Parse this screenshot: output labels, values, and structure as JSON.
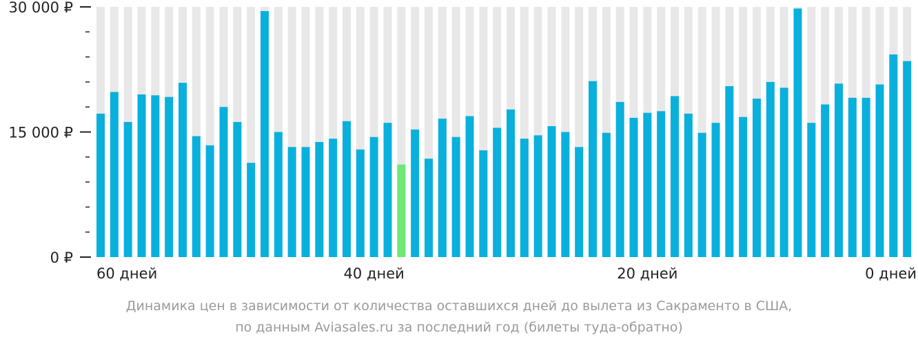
{
  "chart_data": {
    "type": "bar",
    "ylim": [
      0,
      30000
    ],
    "y_ticks": [
      {
        "value": 0,
        "label": "0 ₽"
      },
      {
        "value": 15000,
        "label": "15 000 ₽"
      },
      {
        "value": 30000,
        "label": "30 000 ₽"
      }
    ],
    "y_minor_step": 3000,
    "x_labels": [
      {
        "index": 0,
        "label": "60 дней"
      },
      {
        "index": 20,
        "label": "40 дней"
      },
      {
        "index": 40,
        "label": "20 дней"
      },
      {
        "index": 59,
        "label": "0 дней"
      }
    ],
    "values": [
      17200,
      19800,
      16200,
      19500,
      19400,
      19200,
      20900,
      14500,
      13400,
      18000,
      16200,
      11300,
      29500,
      15000,
      13200,
      13200,
      13800,
      14200,
      16300,
      12900,
      14400,
      16100,
      11100,
      15300,
      11800,
      16600,
      14400,
      16900,
      12800,
      15500,
      17700,
      14200,
      14600,
      15700,
      15000,
      13200,
      21100,
      14900,
      18600,
      16700,
      17300,
      17500,
      19300,
      17200,
      14900,
      16100,
      20500,
      16800,
      19000,
      21000,
      20300,
      29800,
      16100,
      18300,
      20800,
      19100,
      19100,
      20700,
      24300,
      23500
    ],
    "highlight_index": 22,
    "colors": {
      "bar": "#0ab0dc",
      "highlight": "#6ee876",
      "background_column": "#e8e8e8",
      "axis": "#222222",
      "caption": "#9a9a9a"
    }
  },
  "caption": {
    "line1": "Динамика цен в зависимости от количества оставшихся дней до вылета из Сакраменто в США,",
    "line2": "по данным Aviasales.ru за последний год (билеты туда-обратно)"
  }
}
